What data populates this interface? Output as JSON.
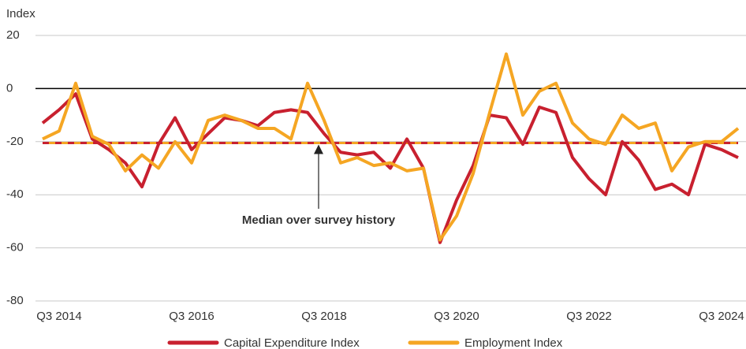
{
  "chart_data": {
    "type": "line",
    "y_label": "Index",
    "categories": [
      null,
      "Q3 2014",
      null,
      null,
      null,
      null,
      null,
      null,
      null,
      "Q3 2016",
      null,
      null,
      null,
      null,
      null,
      null,
      null,
      "Q3 2018",
      null,
      null,
      null,
      null,
      null,
      null,
      null,
      "Q3 2020",
      null,
      null,
      null,
      null,
      null,
      null,
      null,
      "Q3 2022",
      null,
      null,
      null,
      null,
      null,
      null,
      null,
      "Q3 2024",
      null
    ],
    "series": [
      {
        "name": "Capital Expenditure Index",
        "color": "#c8202f",
        "values": [
          -13,
          -8,
          -2,
          -19,
          -23,
          -28,
          -37,
          -21,
          -11,
          -23,
          -17,
          -11,
          -12,
          -14,
          -9,
          -8,
          -9,
          -17,
          -24,
          -25,
          -24,
          -30,
          -19,
          -30,
          -58,
          -42,
          -29,
          -10,
          -11,
          -21,
          -7,
          -9,
          -26,
          -34,
          -40,
          -20,
          -27,
          -38,
          -36,
          -40,
          -21,
          -23,
          -26
        ]
      },
      {
        "name": "Employment Index",
        "color": "#f5a623",
        "values": [
          -19,
          -16,
          2,
          -18,
          -21,
          -31,
          -25,
          -30,
          -20,
          -28,
          -12,
          -10,
          -12,
          -15,
          -15,
          -19,
          2,
          -12,
          -28,
          -26,
          -29,
          -28,
          -31,
          -30,
          -57,
          -48,
          -32,
          -9,
          13,
          -10,
          -1,
          2,
          -13,
          -19,
          -21,
          -10,
          -15,
          -13,
          -31,
          -22,
          -20,
          -20,
          -15
        ]
      }
    ],
    "reference_lines": [
      {
        "value": -20.5,
        "color": "#c8202f"
      },
      {
        "value": -20.5,
        "color": "#f5a623"
      }
    ],
    "annotation": "Median over survey history",
    "ylim": [
      -80,
      20
    ],
    "yticks": [
      -80,
      -60,
      -40,
      -20,
      0,
      20
    ],
    "grid": true
  }
}
